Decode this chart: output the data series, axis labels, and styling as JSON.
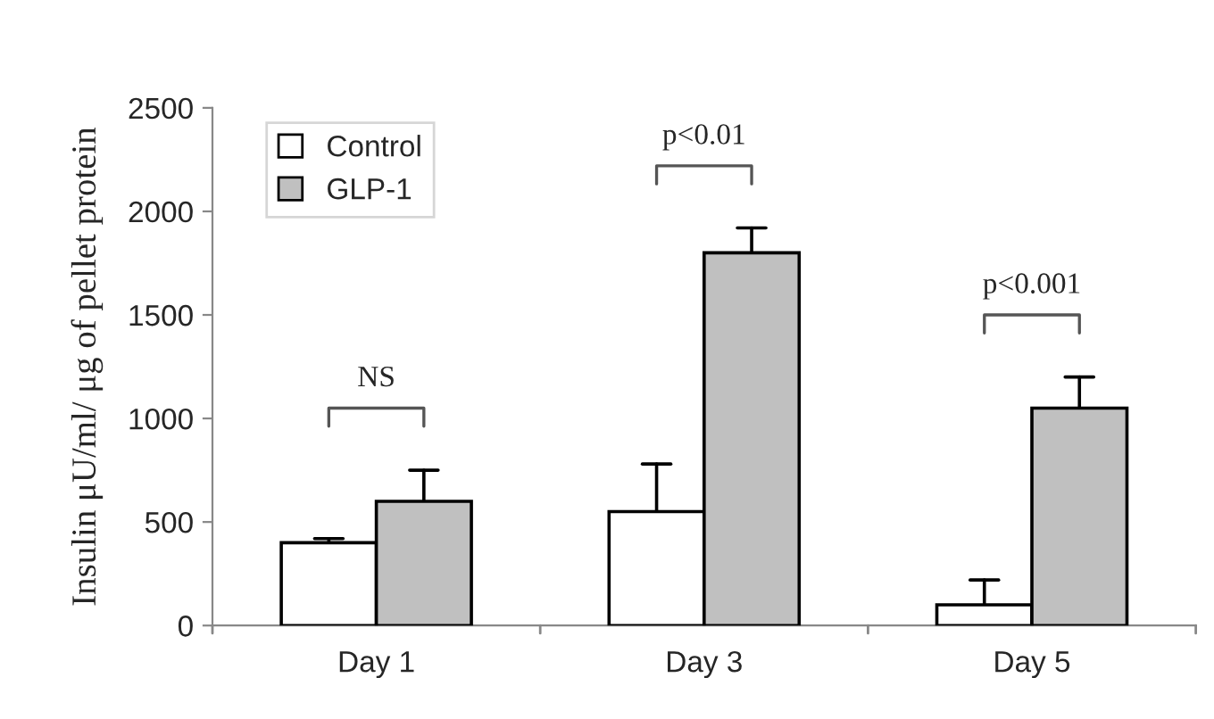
{
  "chart_data": {
    "type": "bar",
    "ylabel": "Insulin μU/ml/ μg of pellet protein",
    "categories": [
      "Day 1",
      "Day 3",
      "Day 5"
    ],
    "series": [
      {
        "name": "Control",
        "color": "#ffffff",
        "values": [
          400,
          550,
          100
        ],
        "errors": [
          20,
          230,
          120
        ]
      },
      {
        "name": "GLP-1",
        "color": "#c0c0c0",
        "values": [
          600,
          1800,
          1050
        ],
        "errors": [
          150,
          120,
          150
        ]
      }
    ],
    "ylim": [
      0,
      2500
    ],
    "yticks": [
      0,
      500,
      1000,
      1500,
      2000,
      2500
    ],
    "grid": false,
    "legend": "top left",
    "annotations": [
      "NS",
      "p<0.01",
      "p<0.001"
    ]
  }
}
